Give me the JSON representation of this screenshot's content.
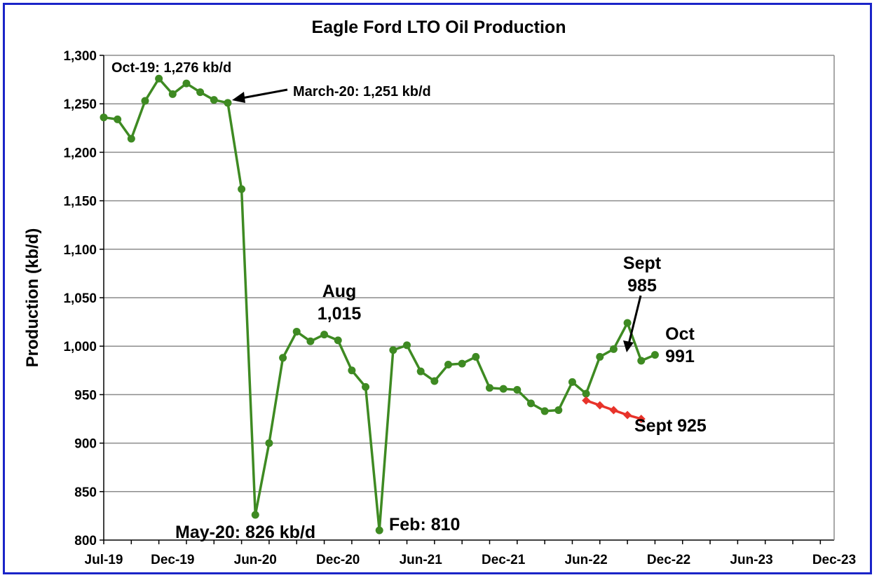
{
  "chart_data": {
    "type": "line",
    "title": "Eagle Ford LTO Oil Production",
    "ylabel": "Production (kb/d)",
    "xlabel": "",
    "ylim": [
      800,
      1300
    ],
    "yticks": [
      800,
      850,
      900,
      950,
      1000,
      1050,
      1100,
      1150,
      1200,
      1250,
      1300
    ],
    "ytick_labels": [
      "800",
      "850",
      "900",
      "950",
      "1,000",
      "1,050",
      "1,100",
      "1,150",
      "1,200",
      "1,250",
      "1,300"
    ],
    "xrange": [
      "2019-07",
      "2023-12"
    ],
    "xticks": [
      "Jul-19",
      "Dec-19",
      "Jun-20",
      "Dec-20",
      "Jun-21",
      "Dec-21",
      "Jun-22",
      "Dec-22",
      "Jun-23",
      "Dec-23"
    ],
    "xtick_months": [
      "2019-07",
      "2019-12",
      "2020-06",
      "2020-12",
      "2021-06",
      "2021-12",
      "2022-06",
      "2022-12",
      "2023-06",
      "2023-12"
    ],
    "grid": "horizontal",
    "series": [
      {
        "color": "#3e8a22",
        "marker": "circle",
        "points": [
          [
            "2019-07",
            1236
          ],
          [
            "2019-08",
            1234
          ],
          [
            "2019-09",
            1214
          ],
          [
            "2019-10",
            1253
          ],
          [
            "2019-11",
            1276
          ],
          [
            "2019-12",
            1260
          ],
          [
            "2020-01",
            1271
          ],
          [
            "2020-02",
            1262
          ],
          [
            "2020-03",
            1254
          ],
          [
            "2020-04",
            1251
          ],
          [
            "2020-05",
            1162
          ],
          [
            "2020-06",
            826
          ],
          [
            "2020-07",
            900
          ],
          [
            "2020-08",
            988
          ],
          [
            "2020-09",
            1015
          ],
          [
            "2020-10",
            1005
          ],
          [
            "2020-11",
            1012
          ],
          [
            "2020-12",
            1006
          ],
          [
            "2021-01",
            975
          ],
          [
            "2021-02",
            958
          ],
          [
            "2021-03",
            810
          ],
          [
            "2021-04",
            996
          ],
          [
            "2021-05",
            1001
          ],
          [
            "2021-06",
            974
          ],
          [
            "2021-07",
            964
          ],
          [
            "2021-08",
            981
          ],
          [
            "2021-09",
            982
          ],
          [
            "2021-10",
            989
          ],
          [
            "2021-11",
            957
          ],
          [
            "2021-12",
            956
          ],
          [
            "2022-01",
            955
          ],
          [
            "2022-02",
            941
          ],
          [
            "2022-03",
            933
          ],
          [
            "2022-04",
            934
          ],
          [
            "2022-05",
            963
          ],
          [
            "2022-06",
            951
          ],
          [
            "2022-07",
            989
          ],
          [
            "2022-08",
            997
          ],
          [
            "2022-09",
            1024
          ],
          [
            "2022-10",
            985
          ],
          [
            "2022-11",
            991
          ]
        ]
      },
      {
        "color": "#e8332a",
        "marker": "diamond",
        "points": [
          [
            "2022-06",
            944
          ],
          [
            "2022-07",
            939
          ],
          [
            "2022-08",
            934
          ],
          [
            "2022-09",
            929
          ],
          [
            "2022-10",
            925
          ]
        ]
      }
    ],
    "annotations": [
      {
        "lines": [
          "Oct-19: 1,276 kb/d"
        ]
      },
      {
        "lines": [
          "March-20: 1,251 kb/d"
        ]
      },
      {
        "lines": [
          "Aug",
          "1,015"
        ]
      },
      {
        "lines": [
          "Sept",
          "985"
        ]
      },
      {
        "lines": [
          "Oct",
          "991"
        ]
      },
      {
        "lines": [
          "Sept 925"
        ]
      },
      {
        "lines": [
          "May-20: 826 kb/d"
        ]
      },
      {
        "lines": [
          "Feb: 810"
        ]
      }
    ]
  },
  "colors": {
    "frame_border": "#1a24c8",
    "grid": "#8c8c8c",
    "axis": "#000000"
  }
}
